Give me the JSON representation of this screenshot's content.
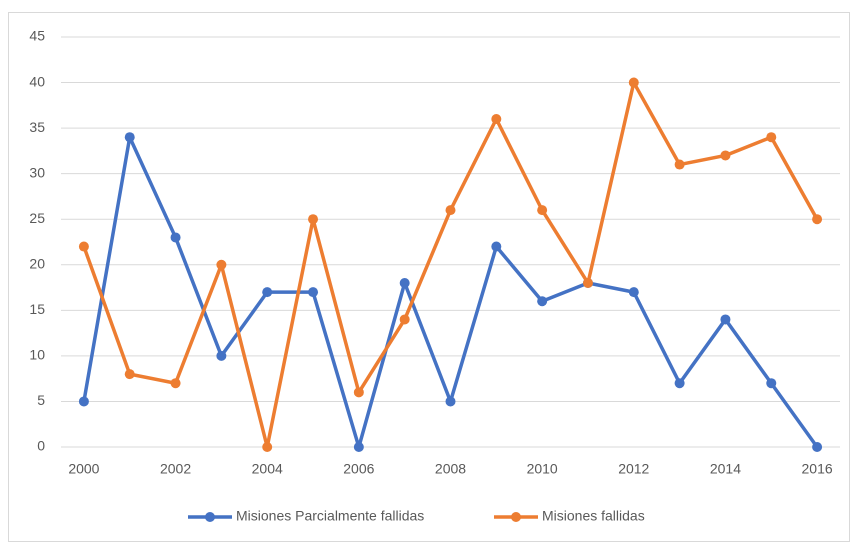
{
  "chart_data": {
    "type": "line",
    "x": [
      2000,
      2001,
      2002,
      2003,
      2004,
      2005,
      2006,
      2007,
      2008,
      2009,
      2010,
      2011,
      2012,
      2013,
      2014,
      2015,
      2016
    ],
    "series": [
      {
        "name": "Misiones Parcialmente fallidas",
        "color": "#4472c4",
        "values": [
          5,
          34,
          23,
          10,
          17,
          17,
          0,
          18,
          5,
          22,
          16,
          18,
          17,
          7,
          14,
          7,
          0
        ]
      },
      {
        "name": "Misiones fallidas",
        "color": "#ed7d31",
        "values": [
          22,
          8,
          7,
          20,
          0,
          25,
          6,
          14,
          26,
          36,
          26,
          18,
          40,
          31,
          32,
          34,
          25
        ]
      }
    ],
    "xlim": [
      1999.5,
      2016.5
    ],
    "xticks": [
      2000,
      2002,
      2004,
      2006,
      2008,
      2010,
      2012,
      2014,
      2016
    ],
    "ylim": [
      0,
      45
    ],
    "yticks": [
      0,
      5,
      10,
      15,
      20,
      25,
      30,
      35,
      40,
      45
    ],
    "grid": true,
    "legend": "bottom"
  }
}
